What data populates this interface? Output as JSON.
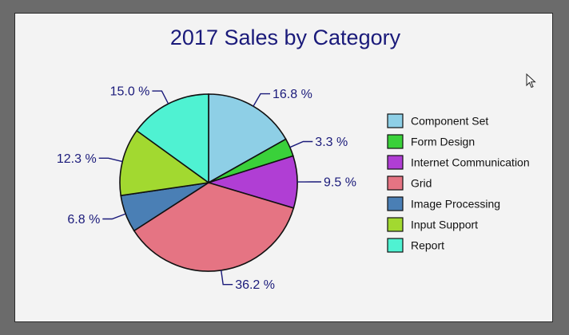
{
  "chart_data": {
    "type": "pie",
    "title": "2017 Sales by Category",
    "categories": [
      "Component Set",
      "Form Design",
      "Internet Communication",
      "Grid",
      "Image Processing",
      "Input Support",
      "Report"
    ],
    "values": [
      16.8,
      3.3,
      9.5,
      36.2,
      6.8,
      12.3,
      15.0
    ],
    "labels": [
      "16.8 %",
      "3.3 %",
      "9.5 %",
      "36.2 %",
      "6.8 %",
      "12.3 %",
      "15.0 %"
    ],
    "colors": [
      "#8ecfe6",
      "#3ad13a",
      "#b03ed4",
      "#e57483",
      "#4a7fb5",
      "#a2d930",
      "#4ff2d2"
    ],
    "legend_position": "right",
    "start_angle": "12 o'clock, clockwise"
  },
  "ui": {
    "cursor_icon": "mouse-pointer-icon"
  }
}
